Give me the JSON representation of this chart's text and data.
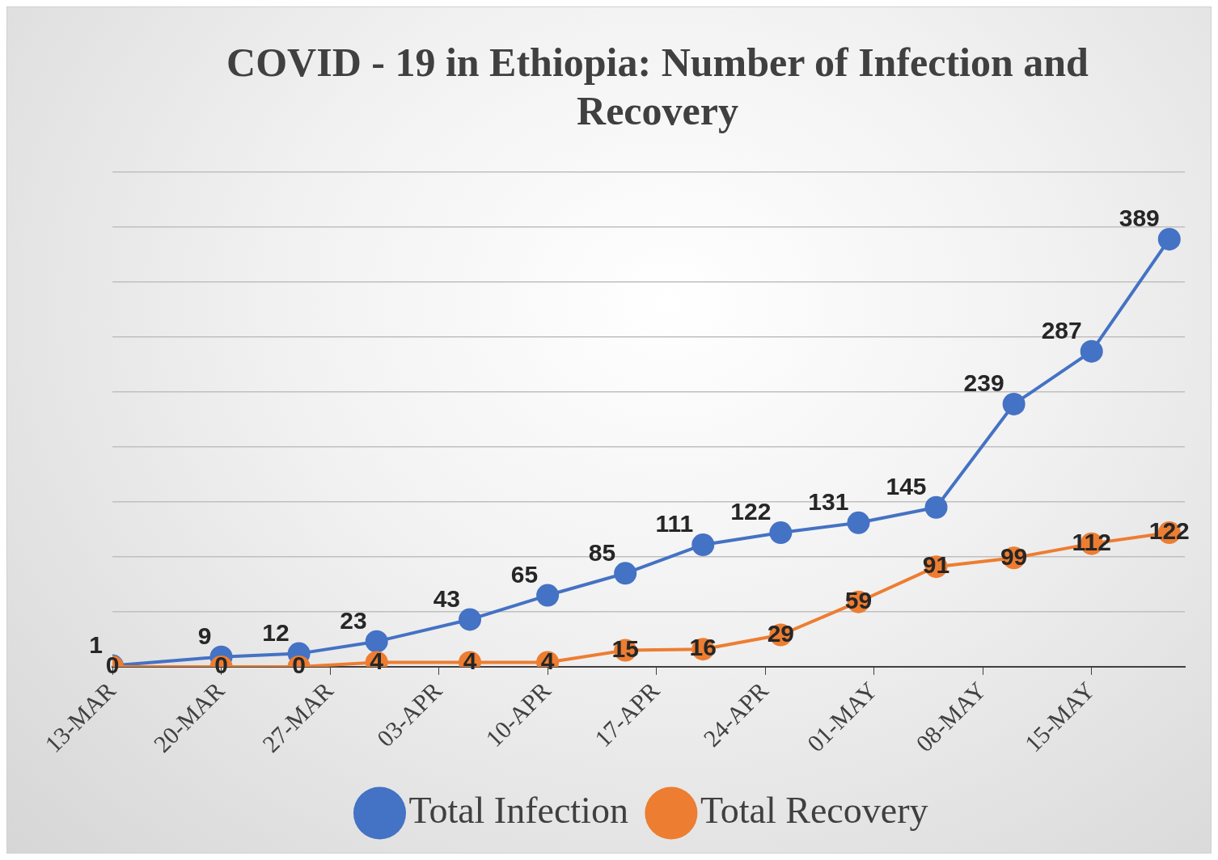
{
  "chart_data": {
    "type": "line",
    "title": "COVID - 19 in Ethiopia: Number of Infection and Recovery",
    "x": [
      "--03-13",
      "--03-20",
      "--03-25",
      "--03-30",
      "--04-05",
      "--04-10",
      "--04-15",
      "--04-20",
      "--04-25",
      "--04-30",
      "--05-05",
      "--05-10",
      "--05-15",
      "--05-20"
    ],
    "series": [
      {
        "name": "Total Infection",
        "color": "#4472c4",
        "values": [
          1,
          9,
          12,
          23,
          43,
          65,
          85,
          111,
          122,
          131,
          145,
          239,
          287,
          389
        ]
      },
      {
        "name": "Total Recovery",
        "color": "#ed7d31",
        "values": [
          0,
          0,
          0,
          4,
          4,
          4,
          15,
          16,
          29,
          59,
          91,
          99,
          112,
          122
        ]
      }
    ],
    "xlim": [
      "--03-13",
      "--05-21"
    ],
    "xticks": [
      {
        "value": "--03-13",
        "label": "13-MAR"
      },
      {
        "value": "--03-20",
        "label": "20-MAR"
      },
      {
        "value": "--03-27",
        "label": "27-MAR"
      },
      {
        "value": "--04-03",
        "label": "03-APR"
      },
      {
        "value": "--04-10",
        "label": "10-APR"
      },
      {
        "value": "--04-17",
        "label": "17-APR"
      },
      {
        "value": "--04-24",
        "label": "24-APR"
      },
      {
        "value": "--05-01",
        "label": "01-MAY"
      },
      {
        "value": "--05-08",
        "label": "08-MAY"
      },
      {
        "value": "--05-15",
        "label": "15-MAY"
      }
    ],
    "ylim": [
      0,
      450
    ],
    "yticks": [
      {
        "value": 0,
        "label": null
      },
      {
        "value": 50,
        "label": null
      },
      {
        "value": 100,
        "label": null
      },
      {
        "value": 150,
        "label": null
      },
      {
        "value": 200,
        "label": null
      },
      {
        "value": 250,
        "label": null
      },
      {
        "value": 300,
        "label": null
      },
      {
        "value": 350,
        "label": null
      },
      {
        "value": 400,
        "label": null
      },
      {
        "value": 450,
        "label": null
      }
    ],
    "tick_labels": "x",
    "grid": "y",
    "legend": "bottom",
    "marker": "circle",
    "line_style": "solid",
    "data_labels": true
  }
}
